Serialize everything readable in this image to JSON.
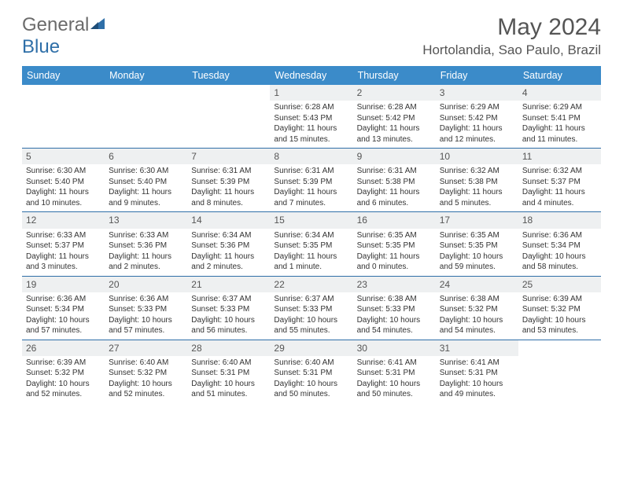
{
  "logo": {
    "part1": "General",
    "part2": "Blue"
  },
  "title": "May 2024",
  "location": "Hortolandia, Sao Paulo, Brazil",
  "colors": {
    "header_bg": "#3b8bc9",
    "rule": "#2f6fa8",
    "daynum_bg": "#eef0f1",
    "text": "#333333",
    "muted": "#555555"
  },
  "dow": [
    "Sunday",
    "Monday",
    "Tuesday",
    "Wednesday",
    "Thursday",
    "Friday",
    "Saturday"
  ],
  "weeks": [
    [
      null,
      null,
      null,
      {
        "n": "1",
        "sr": "6:28 AM",
        "ss": "5:43 PM",
        "dl": "11 hours and 15 minutes."
      },
      {
        "n": "2",
        "sr": "6:28 AM",
        "ss": "5:42 PM",
        "dl": "11 hours and 13 minutes."
      },
      {
        "n": "3",
        "sr": "6:29 AM",
        "ss": "5:42 PM",
        "dl": "11 hours and 12 minutes."
      },
      {
        "n": "4",
        "sr": "6:29 AM",
        "ss": "5:41 PM",
        "dl": "11 hours and 11 minutes."
      }
    ],
    [
      {
        "n": "5",
        "sr": "6:30 AM",
        "ss": "5:40 PM",
        "dl": "11 hours and 10 minutes."
      },
      {
        "n": "6",
        "sr": "6:30 AM",
        "ss": "5:40 PM",
        "dl": "11 hours and 9 minutes."
      },
      {
        "n": "7",
        "sr": "6:31 AM",
        "ss": "5:39 PM",
        "dl": "11 hours and 8 minutes."
      },
      {
        "n": "8",
        "sr": "6:31 AM",
        "ss": "5:39 PM",
        "dl": "11 hours and 7 minutes."
      },
      {
        "n": "9",
        "sr": "6:31 AM",
        "ss": "5:38 PM",
        "dl": "11 hours and 6 minutes."
      },
      {
        "n": "10",
        "sr": "6:32 AM",
        "ss": "5:38 PM",
        "dl": "11 hours and 5 minutes."
      },
      {
        "n": "11",
        "sr": "6:32 AM",
        "ss": "5:37 PM",
        "dl": "11 hours and 4 minutes."
      }
    ],
    [
      {
        "n": "12",
        "sr": "6:33 AM",
        "ss": "5:37 PM",
        "dl": "11 hours and 3 minutes."
      },
      {
        "n": "13",
        "sr": "6:33 AM",
        "ss": "5:36 PM",
        "dl": "11 hours and 2 minutes."
      },
      {
        "n": "14",
        "sr": "6:34 AM",
        "ss": "5:36 PM",
        "dl": "11 hours and 2 minutes."
      },
      {
        "n": "15",
        "sr": "6:34 AM",
        "ss": "5:35 PM",
        "dl": "11 hours and 1 minute."
      },
      {
        "n": "16",
        "sr": "6:35 AM",
        "ss": "5:35 PM",
        "dl": "11 hours and 0 minutes."
      },
      {
        "n": "17",
        "sr": "6:35 AM",
        "ss": "5:35 PM",
        "dl": "10 hours and 59 minutes."
      },
      {
        "n": "18",
        "sr": "6:36 AM",
        "ss": "5:34 PM",
        "dl": "10 hours and 58 minutes."
      }
    ],
    [
      {
        "n": "19",
        "sr": "6:36 AM",
        "ss": "5:34 PM",
        "dl": "10 hours and 57 minutes."
      },
      {
        "n": "20",
        "sr": "6:36 AM",
        "ss": "5:33 PM",
        "dl": "10 hours and 57 minutes."
      },
      {
        "n": "21",
        "sr": "6:37 AM",
        "ss": "5:33 PM",
        "dl": "10 hours and 56 minutes."
      },
      {
        "n": "22",
        "sr": "6:37 AM",
        "ss": "5:33 PM",
        "dl": "10 hours and 55 minutes."
      },
      {
        "n": "23",
        "sr": "6:38 AM",
        "ss": "5:33 PM",
        "dl": "10 hours and 54 minutes."
      },
      {
        "n": "24",
        "sr": "6:38 AM",
        "ss": "5:32 PM",
        "dl": "10 hours and 54 minutes."
      },
      {
        "n": "25",
        "sr": "6:39 AM",
        "ss": "5:32 PM",
        "dl": "10 hours and 53 minutes."
      }
    ],
    [
      {
        "n": "26",
        "sr": "6:39 AM",
        "ss": "5:32 PM",
        "dl": "10 hours and 52 minutes."
      },
      {
        "n": "27",
        "sr": "6:40 AM",
        "ss": "5:32 PM",
        "dl": "10 hours and 52 minutes."
      },
      {
        "n": "28",
        "sr": "6:40 AM",
        "ss": "5:31 PM",
        "dl": "10 hours and 51 minutes."
      },
      {
        "n": "29",
        "sr": "6:40 AM",
        "ss": "5:31 PM",
        "dl": "10 hours and 50 minutes."
      },
      {
        "n": "30",
        "sr": "6:41 AM",
        "ss": "5:31 PM",
        "dl": "10 hours and 50 minutes."
      },
      {
        "n": "31",
        "sr": "6:41 AM",
        "ss": "5:31 PM",
        "dl": "10 hours and 49 minutes."
      },
      null
    ]
  ],
  "labels": {
    "sunrise": "Sunrise: ",
    "sunset": "Sunset: ",
    "daylight": "Daylight: "
  }
}
